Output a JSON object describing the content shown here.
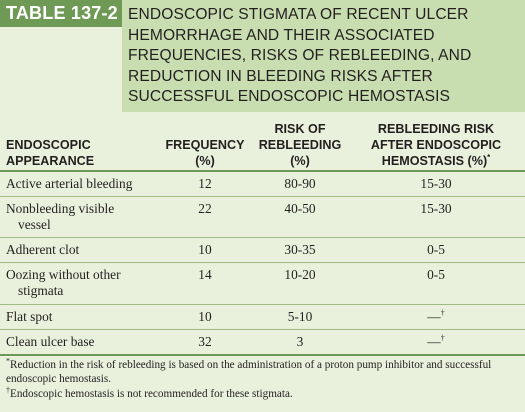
{
  "header": {
    "table_label": "TABLE 137-2",
    "title_lines": [
      "ENDOSCOPIC STIGMATA OF RECENT ULCER",
      "HEMORRHAGE AND THEIR ASSOCIATED",
      "FREQUENCIES, RISKS OF REBLEEDING, AND",
      "REDUCTION IN BLEEDING RISKS AFTER",
      "SUCCESSFUL ENDOSCOPIC HEMOSTASIS"
    ]
  },
  "columns": {
    "appearance": [
      "ENDOSCOPIC",
      "APPEARANCE"
    ],
    "frequency": [
      "FREQUENCY",
      "(%)"
    ],
    "risk": [
      "RISK OF",
      "REBLEEDING",
      "(%)"
    ],
    "after": [
      "REBLEEDING RISK",
      "AFTER ENDOSCOPIC",
      "HEMOSTASIS (%)"
    ],
    "after_mark": "*"
  },
  "rows": [
    {
      "appearance": [
        "Active arterial bleeding"
      ],
      "frequency": "12",
      "risk": "80-90",
      "after": "15-30",
      "after_mark": ""
    },
    {
      "appearance": [
        "Nonbleeding visible",
        "vessel"
      ],
      "frequency": "22",
      "risk": "40-50",
      "after": "15-30",
      "after_mark": ""
    },
    {
      "appearance": [
        "Adherent clot"
      ],
      "frequency": "10",
      "risk": "30-35",
      "after": "0-5",
      "after_mark": ""
    },
    {
      "appearance": [
        "Oozing without other",
        "stigmata"
      ],
      "frequency": "14",
      "risk": "10-20",
      "after": "0-5",
      "after_mark": ""
    },
    {
      "appearance": [
        "Flat spot"
      ],
      "frequency": "10",
      "risk": "5-10",
      "after": "—",
      "after_mark": "†"
    },
    {
      "appearance": [
        "Clean ulcer base"
      ],
      "frequency": "32",
      "risk": "3",
      "after": "—",
      "after_mark": "†"
    }
  ],
  "footnotes": {
    "note1_mark": "*",
    "note1": "Reduction in the risk of rebleeding is based on the administration of a proton pump inhibitor and successful endoscopic hemostasis.",
    "note2_mark": "†",
    "note2": "Endoscopic hemostasis is not recommended for these stigmata."
  },
  "colors": {
    "label_bg": "#6f9a55",
    "title_bg": "#c9deb0",
    "body_bg": "#e9f1dd",
    "rule": "#9fbd82"
  }
}
